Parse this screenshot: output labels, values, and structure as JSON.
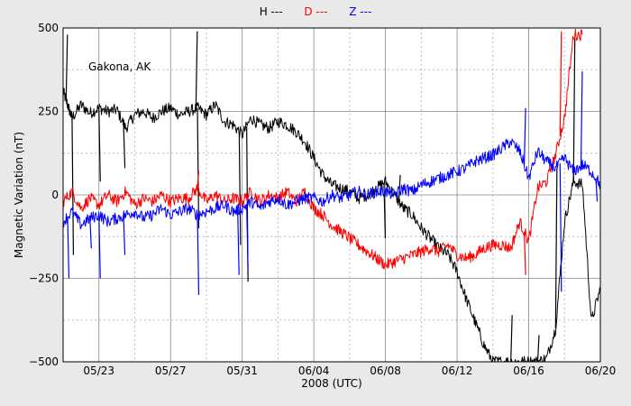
{
  "legend": [
    {
      "label": "H ---",
      "color": "#000000"
    },
    {
      "label": "D ---",
      "color": "#ff0000"
    },
    {
      "label": "Z ---",
      "color": "#0000ff"
    }
  ],
  "chart_data": {
    "type": "line",
    "title": "",
    "annotation": "Gakona, AK",
    "xlabel": "2008 (UTC)",
    "ylabel": "Magnetic Variation (nT)",
    "xlim": [
      "2008-05-21",
      "2008-06-20"
    ],
    "ylim": [
      -500,
      500
    ],
    "grid": true,
    "y_ticks": [
      -500,
      -250,
      0,
      250,
      500
    ],
    "y_tick_labels": [
      "−500",
      "−250",
      "0",
      "250",
      "500"
    ],
    "x_ticks": [
      "2008-05-23",
      "2008-05-27",
      "2008-05-31",
      "2008-06-04",
      "2008-06-08",
      "2008-06-12",
      "2008-06-16",
      "2008-06-20"
    ],
    "x_tick_labels": [
      "05/23",
      "05/27",
      "05/31",
      "06/04",
      "06/08",
      "06/12",
      "06/16",
      "06/20"
    ],
    "legend_placement": "top-center",
    "series": [
      {
        "name": "H",
        "color": "#000000",
        "x": [
          "2008-05-21T00:00",
          "2008-05-21T06:00",
          "2008-05-21T12:00",
          "2008-05-22T00:00",
          "2008-05-22T12:00",
          "2008-05-23T00:00",
          "2008-05-23T12:00",
          "2008-05-24T00:00",
          "2008-05-24T12:00",
          "2008-05-25T00:00",
          "2008-05-25T12:00",
          "2008-05-26T00:00",
          "2008-05-26T12:00",
          "2008-05-27T00:00",
          "2008-05-27T12:00",
          "2008-05-28T00:00",
          "2008-05-28T12:00",
          "2008-05-29T00:00",
          "2008-05-29T12:00",
          "2008-05-30T00:00",
          "2008-05-30T12:00",
          "2008-05-31T00:00",
          "2008-05-31T12:00",
          "2008-06-01T00:00",
          "2008-06-01T12:00",
          "2008-06-02T00:00",
          "2008-06-02T12:00",
          "2008-06-03T00:00",
          "2008-06-03T12:00",
          "2008-06-04T00:00",
          "2008-06-04T12:00",
          "2008-06-05T00:00",
          "2008-06-05T12:00",
          "2008-06-06T00:00",
          "2008-06-06T12:00",
          "2008-06-07T00:00",
          "2008-06-07T12:00",
          "2008-06-08T00:00",
          "2008-06-08T12:00",
          "2008-06-09T00:00",
          "2008-06-09T12:00",
          "2008-06-10T00:00",
          "2008-06-10T12:00",
          "2008-06-11T00:00",
          "2008-06-11T12:00",
          "2008-06-12T00:00",
          "2008-06-12T12:00",
          "2008-06-13T00:00",
          "2008-06-13T12:00",
          "2008-06-14T00:00",
          "2008-06-14T12:00",
          "2008-06-15T00:00",
          "2008-06-15T12:00",
          "2008-06-16T00:00",
          "2008-06-16T12:00",
          "2008-06-17T00:00",
          "2008-06-17T12:00",
          "2008-06-18T00:00",
          "2008-06-18T12:00",
          "2008-06-19T00:00",
          "2008-06-19T12:00",
          "2008-06-20T00:00"
        ],
        "y": [
          310,
          270,
          230,
          270,
          245,
          260,
          250,
          255,
          200,
          240,
          250,
          230,
          250,
          260,
          240,
          250,
          260,
          240,
          270,
          220,
          210,
          180,
          230,
          210,
          200,
          220,
          210,
          190,
          160,
          110,
          60,
          30,
          20,
          10,
          -10,
          0,
          20,
          40,
          0,
          -40,
          -60,
          -100,
          -130,
          -160,
          -180,
          -230,
          -310,
          -380,
          -450,
          -500,
          -500,
          -500,
          -500,
          -500,
          -500,
          -490,
          -400,
          -80,
          40,
          30,
          -380,
          -280
        ],
        "spikes": [
          {
            "x": "2008-05-21T04:00",
            "y": 480
          },
          {
            "x": "2008-05-21T12:00",
            "y": -180
          },
          {
            "x": "2008-05-23T00:00",
            "y": 40
          },
          {
            "x": "2008-05-24T09:00",
            "y": 80
          },
          {
            "x": "2008-05-28T10:00",
            "y": 490
          },
          {
            "x": "2008-05-28T12:00",
            "y": -100
          },
          {
            "x": "2008-05-30T20:00",
            "y": -150
          },
          {
            "x": "2008-05-31T06:00",
            "y": -260
          },
          {
            "x": "2008-06-07T22:00",
            "y": -130
          },
          {
            "x": "2008-06-08T18:00",
            "y": 60
          },
          {
            "x": "2008-06-15T00:00",
            "y": -360
          },
          {
            "x": "2008-06-16T12:00",
            "y": -420
          },
          {
            "x": "2008-06-17T12:00",
            "y": 80
          },
          {
            "x": "2008-06-18T12:00",
            "y": 470
          }
        ]
      },
      {
        "name": "D",
        "color": "#ff0000",
        "x": [
          "2008-05-21T00:00",
          "2008-05-21T12:00",
          "2008-05-22T00:00",
          "2008-05-22T12:00",
          "2008-05-23T00:00",
          "2008-05-23T12:00",
          "2008-05-24T00:00",
          "2008-05-24T12:00",
          "2008-05-25T00:00",
          "2008-05-25T12:00",
          "2008-05-26T00:00",
          "2008-05-26T12:00",
          "2008-05-27T00:00",
          "2008-05-27T12:00",
          "2008-05-28T00:00",
          "2008-05-28T12:00",
          "2008-05-29T00:00",
          "2008-05-29T12:00",
          "2008-05-30T00:00",
          "2008-05-30T12:00",
          "2008-05-31T00:00",
          "2008-05-31T12:00",
          "2008-06-01T00:00",
          "2008-06-01T12:00",
          "2008-06-02T00:00",
          "2008-06-02T12:00",
          "2008-06-03T00:00",
          "2008-06-03T12:00",
          "2008-06-04T00:00",
          "2008-06-04T12:00",
          "2008-06-05T00:00",
          "2008-06-05T12:00",
          "2008-06-06T00:00",
          "2008-06-06T12:00",
          "2008-06-07T00:00",
          "2008-06-07T12:00",
          "2008-06-08T00:00",
          "2008-06-08T12:00",
          "2008-06-09T00:00",
          "2008-06-09T12:00",
          "2008-06-10T00:00",
          "2008-06-10T12:00",
          "2008-06-11T00:00",
          "2008-06-11T12:00",
          "2008-06-12T00:00",
          "2008-06-12T12:00",
          "2008-06-13T00:00",
          "2008-06-13T12:00",
          "2008-06-14T00:00",
          "2008-06-14T12:00",
          "2008-06-15T00:00",
          "2008-06-15T12:00",
          "2008-06-16T00:00",
          "2008-06-16T12:00",
          "2008-06-17T00:00",
          "2008-06-17T12:00",
          "2008-06-18T00:00",
          "2008-06-18T12:00",
          "2008-06-19T00:00"
        ],
        "y": [
          -20,
          10,
          -40,
          -10,
          -30,
          0,
          -20,
          10,
          -30,
          -10,
          -20,
          0,
          -20,
          -10,
          -10,
          20,
          -20,
          0,
          -20,
          -10,
          -20,
          10,
          -20,
          0,
          -10,
          10,
          -20,
          10,
          -40,
          -60,
          -90,
          -110,
          -130,
          -150,
          -170,
          -190,
          -210,
          -200,
          -190,
          -180,
          -170,
          -160,
          -170,
          -150,
          -180,
          -190,
          -180,
          -160,
          -150,
          -150,
          -160,
          -80,
          -140,
          20,
          40,
          120,
          230,
          480,
          480
        ],
        "spikes": [
          {
            "x": "2008-05-28T12:00",
            "y": 70
          },
          {
            "x": "2008-06-15T18:00",
            "y": -240
          },
          {
            "x": "2008-06-17T18:00",
            "y": 490
          }
        ]
      },
      {
        "name": "Z",
        "color": "#0000ff",
        "x": [
          "2008-05-21T00:00",
          "2008-05-21T12:00",
          "2008-05-22T00:00",
          "2008-05-22T12:00",
          "2008-05-23T00:00",
          "2008-05-23T12:00",
          "2008-05-24T00:00",
          "2008-05-24T12:00",
          "2008-05-25T00:00",
          "2008-05-25T12:00",
          "2008-05-26T00:00",
          "2008-05-26T12:00",
          "2008-05-27T00:00",
          "2008-05-27T12:00",
          "2008-05-28T00:00",
          "2008-05-28T12:00",
          "2008-05-29T00:00",
          "2008-05-29T12:00",
          "2008-05-30T00:00",
          "2008-05-30T12:00",
          "2008-05-31T00:00",
          "2008-05-31T12:00",
          "2008-06-01T00:00",
          "2008-06-01T12:00",
          "2008-06-02T00:00",
          "2008-06-02T12:00",
          "2008-06-03T00:00",
          "2008-06-03T12:00",
          "2008-06-04T00:00",
          "2008-06-04T12:00",
          "2008-06-05T00:00",
          "2008-06-05T12:00",
          "2008-06-06T00:00",
          "2008-06-06T12:00",
          "2008-06-07T00:00",
          "2008-06-07T12:00",
          "2008-06-08T00:00",
          "2008-06-08T12:00",
          "2008-06-09T00:00",
          "2008-06-09T12:00",
          "2008-06-10T00:00",
          "2008-06-10T12:00",
          "2008-06-11T00:00",
          "2008-06-11T12:00",
          "2008-06-12T00:00",
          "2008-06-12T12:00",
          "2008-06-13T00:00",
          "2008-06-13T12:00",
          "2008-06-14T00:00",
          "2008-06-14T12:00",
          "2008-06-15T00:00",
          "2008-06-15T12:00",
          "2008-06-16T00:00",
          "2008-06-16T12:00",
          "2008-06-17T00:00",
          "2008-06-17T12:00",
          "2008-06-18T00:00",
          "2008-06-18T12:00",
          "2008-06-19T00:00",
          "2008-06-19T12:00",
          "2008-06-20T00:00"
        ],
        "y": [
          -80,
          -50,
          -90,
          -70,
          -60,
          -80,
          -70,
          -60,
          -50,
          -70,
          -60,
          -40,
          -60,
          -50,
          -40,
          -60,
          -50,
          -40,
          -30,
          -50,
          -40,
          -20,
          -40,
          -20,
          -10,
          -30,
          -20,
          -10,
          -10,
          -20,
          0,
          -10,
          0,
          10,
          0,
          10,
          10,
          0,
          20,
          10,
          30,
          40,
          50,
          60,
          70,
          80,
          100,
          110,
          120,
          140,
          160,
          130,
          50,
          130,
          100,
          80,
          110,
          70,
          90,
          70,
          30
        ],
        "spikes": [
          {
            "x": "2008-05-21T06:00",
            "y": -250
          },
          {
            "x": "2008-05-22T12:00",
            "y": -160
          },
          {
            "x": "2008-05-23T00:00",
            "y": -250
          },
          {
            "x": "2008-05-24T09:00",
            "y": -180
          },
          {
            "x": "2008-05-28T12:00",
            "y": -300
          },
          {
            "x": "2008-05-30T18:00",
            "y": -240
          },
          {
            "x": "2008-05-31T06:00",
            "y": -220
          },
          {
            "x": "2008-06-15T18:00",
            "y": 260
          },
          {
            "x": "2008-06-17T18:00",
            "y": -290
          },
          {
            "x": "2008-06-18T22:00",
            "y": 370
          },
          {
            "x": "2008-06-19T18:00",
            "y": -20
          }
        ]
      }
    ]
  }
}
